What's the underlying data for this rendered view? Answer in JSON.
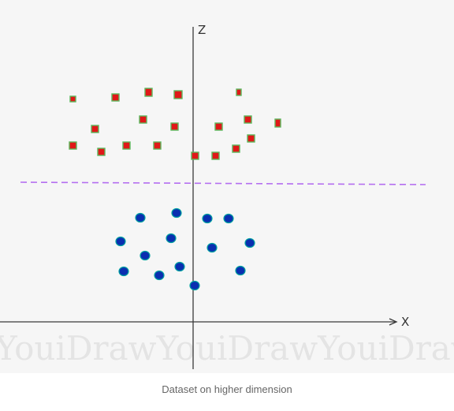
{
  "axes": {
    "z_label": "Z",
    "x_label": "X"
  },
  "watermark": "YouiDrawYouiDrawYouiDraw",
  "caption": "Dataset on higher dimension",
  "colors": {
    "square_fill": "#e01818",
    "square_stroke": "#5cb85c",
    "circle_fill": "#0a2fb0",
    "circle_stroke": "#00a0a0",
    "separator": "#b46ef0"
  }
}
